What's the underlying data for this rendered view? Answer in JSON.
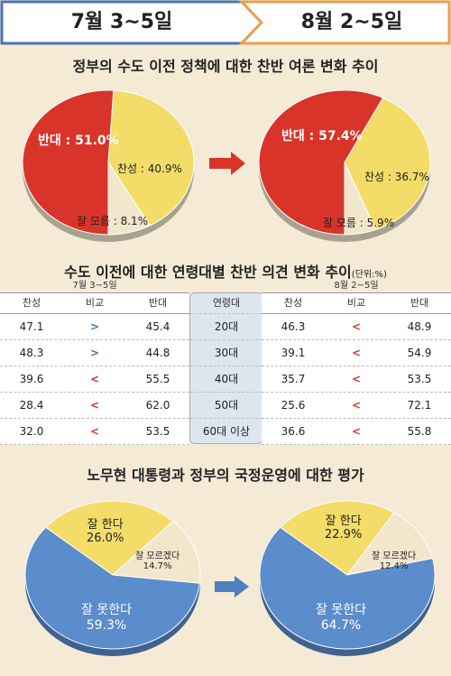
{
  "header": {
    "left": "7월 3~5일",
    "right": "8월 2~5일"
  },
  "section1_title": "정부의 수도 이전 정책에 대한 찬반 여론 변화 추이",
  "section2_title": "수도 이전에 대한 연령대별 찬반 의견 변화 추이",
  "section2_unit": "(단위:%)",
  "section3_title": "노무현 대통령과 정부의 국정운영에 대한 평가",
  "table": {
    "left_period": "7월 3~5일",
    "right_period": "8월 2~5일",
    "columns": [
      "찬성",
      "비교",
      "반대"
    ],
    "mid_header": "연령대",
    "age_groups": [
      "20대",
      "30대",
      "40대",
      "50대",
      "60대 이상"
    ],
    "left": [
      {
        "support": "47.1",
        "cmp": ">",
        "oppose": "45.4"
      },
      {
        "support": "48.3",
        "cmp": ">",
        "oppose": "44.8"
      },
      {
        "support": "39.6",
        "cmp": "<",
        "oppose": "55.5"
      },
      {
        "support": "28.4",
        "cmp": "<",
        "oppose": "62.0"
      },
      {
        "support": "32.0",
        "cmp": "<",
        "oppose": "53.5"
      }
    ],
    "right": [
      {
        "support": "46.3",
        "cmp": "<",
        "oppose": "48.9"
      },
      {
        "support": "39.1",
        "cmp": "<",
        "oppose": "54.9"
      },
      {
        "support": "35.7",
        "cmp": "<",
        "oppose": "53.5"
      },
      {
        "support": "25.6",
        "cmp": "<",
        "oppose": "72.1"
      },
      {
        "support": "36.6",
        "cmp": "<",
        "oppose": "55.8"
      }
    ]
  },
  "colors": {
    "red": "#d9342a",
    "yellow": "#f3dc68",
    "cream": "#f2e6cc",
    "blue": "#5b8ccb",
    "arrow_red": "#d9342a",
    "arrow_blue": "#4f7fc0"
  },
  "chart_data": [
    {
      "type": "pie",
      "title": "정부의 수도 이전 정책에 대한 찬반 여론 변화 추이",
      "period": "7월 3~5일",
      "slices": [
        {
          "label": "반대",
          "value": 51.0,
          "text": "반대 : 51.0%",
          "color": "#d9342a"
        },
        {
          "label": "찬성",
          "value": 40.9,
          "text": "찬성 : 40.9%",
          "color": "#f3dc68"
        },
        {
          "label": "잘 모름",
          "value": 8.1,
          "text": "잘 모름 : 8.1%",
          "color": "#f2e6cc"
        }
      ]
    },
    {
      "type": "pie",
      "title": "정부의 수도 이전 정책에 대한 찬반 여론 변화 추이",
      "period": "8월 2~5일",
      "slices": [
        {
          "label": "반대",
          "value": 57.4,
          "text": "반대 : 57.4%",
          "color": "#d9342a"
        },
        {
          "label": "찬성",
          "value": 36.7,
          "text": "찬성 : 36.7%",
          "color": "#f3dc68"
        },
        {
          "label": "잘 모름",
          "value": 5.9,
          "text": "잘 모름 : 5.9%",
          "color": "#f2e6cc"
        }
      ]
    },
    {
      "type": "table",
      "title": "수도 이전에 대한 연령대별 찬반 의견 변화 추이",
      "unit": "(단위:%)",
      "categories": [
        "20대",
        "30대",
        "40대",
        "50대",
        "60대 이상"
      ],
      "series": [
        {
          "name": "7월 3~5일 찬성",
          "values": [
            47.1,
            48.3,
            39.6,
            28.4,
            32.0
          ]
        },
        {
          "name": "7월 3~5일 반대",
          "values": [
            45.4,
            44.8,
            55.5,
            62.0,
            53.5
          ]
        },
        {
          "name": "8월 2~5일 찬성",
          "values": [
            46.3,
            39.1,
            35.7,
            25.6,
            36.6
          ]
        },
        {
          "name": "8월 2~5일 반대",
          "values": [
            48.9,
            54.9,
            53.5,
            72.1,
            55.8
          ]
        }
      ]
    },
    {
      "type": "pie",
      "title": "노무현 대통령과 정부의 국정운영에 대한 평가",
      "period": "7월 3~5일",
      "slices": [
        {
          "label": "잘 한다",
          "value": 26.0,
          "text": "26.0%",
          "color": "#f3dc68"
        },
        {
          "label": "잘 모르겠다",
          "value": 14.7,
          "text": "14.7%",
          "color": "#f2e6cc"
        },
        {
          "label": "잘 못한다",
          "value": 59.3,
          "text": "59.3%",
          "color": "#5b8ccb"
        }
      ]
    },
    {
      "type": "pie",
      "title": "노무현 대통령과 정부의 국정운영에 대한 평가",
      "period": "8월 2~5일",
      "slices": [
        {
          "label": "잘 한다",
          "value": 22.9,
          "text": "22.9%",
          "color": "#f3dc68"
        },
        {
          "label": "잘 모르겠다",
          "value": 12.4,
          "text": "12.4%",
          "color": "#f2e6cc"
        },
        {
          "label": "잘 못한다",
          "value": 64.7,
          "text": "64.7%",
          "color": "#5b8ccb"
        }
      ]
    }
  ]
}
